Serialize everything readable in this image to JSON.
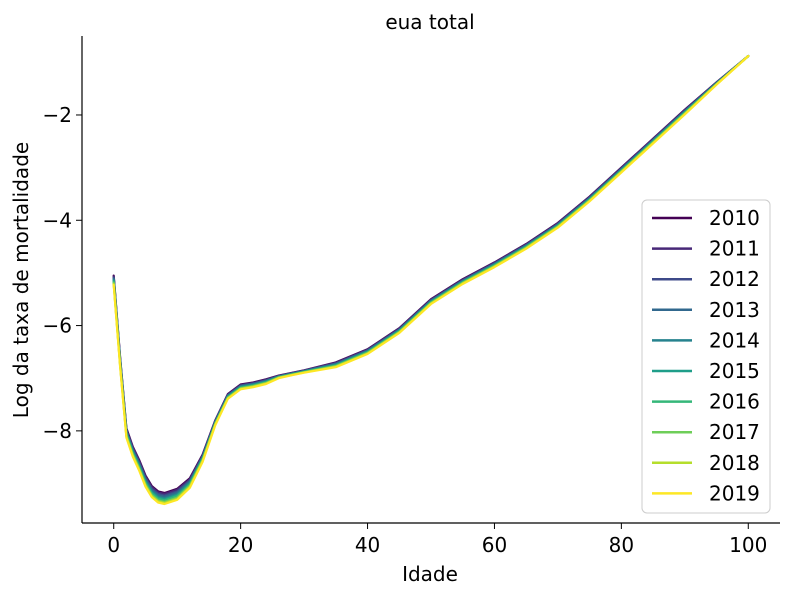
{
  "chart_data": {
    "type": "line",
    "title": "eua total",
    "xlabel": "Idade",
    "ylabel": "Log da taxa de mortalidade",
    "xlim": [
      -5,
      105
    ],
    "ylim": [
      -9.75,
      -0.5
    ],
    "xticks": [
      0,
      20,
      40,
      60,
      80,
      100
    ],
    "xtick_labels": [
      "0",
      "20",
      "40",
      "60",
      "80",
      "100"
    ],
    "yticks": [
      -8,
      -6,
      -4,
      -2
    ],
    "ytick_labels": [
      "−8",
      "−6",
      "−4",
      "−2"
    ],
    "grid": false,
    "legend_position": "lower-right",
    "x": [
      0,
      1,
      2,
      3,
      4,
      5,
      6,
      7,
      8,
      10,
      12,
      14,
      16,
      18,
      20,
      22,
      24,
      26,
      28,
      30,
      35,
      40,
      45,
      50,
      55,
      60,
      65,
      70,
      75,
      80,
      85,
      90,
      95,
      100
    ],
    "base_values": [
      -5.05,
      -6.6,
      -7.95,
      -8.3,
      -8.55,
      -8.85,
      -9.05,
      -9.15,
      -9.18,
      -9.1,
      -8.9,
      -8.45,
      -7.8,
      -7.3,
      -7.12,
      -7.08,
      -7.02,
      -6.95,
      -6.9,
      -6.85,
      -6.7,
      -6.45,
      -6.05,
      -5.5,
      -5.12,
      -4.8,
      -4.45,
      -4.05,
      -3.55,
      -3.0,
      -2.45,
      -1.9,
      -1.38,
      -0.88
    ],
    "series": [
      {
        "name": "2010",
        "color": "#440154",
        "offsets": [
          0.0,
          0.0,
          0.0,
          0.0,
          0.0,
          0.0,
          0.0,
          0.0,
          0.0,
          0.0,
          0.0,
          0.0,
          0.0,
          0.0,
          0.0,
          0.0,
          0.0,
          0.0,
          0.0,
          0.0,
          0.0,
          0.0,
          0.0,
          0.0,
          0.0,
          0.0,
          0.0,
          0.0,
          0.0,
          0.0,
          0.0,
          0.0,
          0.0,
          0.0
        ]
      },
      {
        "name": "2011",
        "color": "#482878",
        "offsets": [
          -0.02,
          -0.02,
          -0.02,
          -0.02,
          -0.02,
          -0.02,
          -0.02,
          -0.02,
          -0.02,
          -0.02,
          -0.02,
          -0.02,
          -0.01,
          -0.01,
          -0.01,
          -0.01,
          -0.01,
          -0.01,
          -0.005,
          -0.005,
          -0.01,
          -0.01,
          -0.01,
          -0.01,
          -0.01,
          -0.01,
          -0.01,
          -0.01,
          -0.01,
          -0.01,
          -0.01,
          -0.01,
          -0.005,
          0.0
        ]
      },
      {
        "name": "2012",
        "color": "#3e4a89",
        "offsets": [
          -0.04,
          -0.04,
          -0.04,
          -0.04,
          -0.05,
          -0.05,
          -0.05,
          -0.05,
          -0.05,
          -0.05,
          -0.04,
          -0.03,
          -0.02,
          -0.02,
          -0.02,
          -0.02,
          -0.02,
          -0.01,
          -0.01,
          -0.01,
          -0.02,
          -0.02,
          -0.02,
          -0.02,
          -0.02,
          -0.02,
          -0.02,
          -0.02,
          -0.02,
          -0.02,
          -0.02,
          -0.02,
          -0.01,
          0.0
        ]
      },
      {
        "name": "2013",
        "color": "#31688e",
        "offsets": [
          -0.06,
          -0.06,
          -0.06,
          -0.07,
          -0.07,
          -0.07,
          -0.07,
          -0.07,
          -0.07,
          -0.07,
          -0.06,
          -0.05,
          -0.03,
          -0.03,
          -0.03,
          -0.03,
          -0.03,
          -0.02,
          -0.015,
          -0.015,
          -0.03,
          -0.03,
          -0.03,
          -0.03,
          -0.03,
          -0.03,
          -0.03,
          -0.03,
          -0.03,
          -0.03,
          -0.03,
          -0.03,
          -0.015,
          0.0
        ]
      },
      {
        "name": "2014",
        "color": "#26828e",
        "offsets": [
          -0.08,
          -0.08,
          -0.08,
          -0.09,
          -0.09,
          -0.1,
          -0.1,
          -0.1,
          -0.1,
          -0.1,
          -0.08,
          -0.06,
          -0.04,
          -0.04,
          -0.04,
          -0.04,
          -0.04,
          -0.02,
          -0.02,
          -0.02,
          -0.04,
          -0.04,
          -0.04,
          -0.04,
          -0.04,
          -0.04,
          -0.04,
          -0.04,
          -0.04,
          -0.04,
          -0.04,
          -0.04,
          -0.02,
          0.0
        ]
      },
      {
        "name": "2015",
        "color": "#1f9e89",
        "offsets": [
          -0.1,
          -0.1,
          -0.1,
          -0.11,
          -0.12,
          -0.12,
          -0.12,
          -0.12,
          -0.12,
          -0.12,
          -0.1,
          -0.08,
          -0.05,
          -0.05,
          -0.05,
          -0.05,
          -0.05,
          -0.03,
          -0.025,
          -0.025,
          -0.05,
          -0.05,
          -0.05,
          -0.05,
          -0.05,
          -0.05,
          -0.05,
          -0.05,
          -0.05,
          -0.05,
          -0.05,
          -0.05,
          -0.025,
          0.0
        ]
      },
      {
        "name": "2016",
        "color": "#35b779",
        "offsets": [
          -0.12,
          -0.12,
          -0.12,
          -0.13,
          -0.14,
          -0.14,
          -0.14,
          -0.14,
          -0.14,
          -0.14,
          -0.12,
          -0.09,
          -0.06,
          -0.06,
          -0.06,
          -0.06,
          -0.06,
          -0.03,
          -0.03,
          -0.03,
          -0.06,
          -0.06,
          -0.06,
          -0.06,
          -0.06,
          -0.06,
          -0.06,
          -0.06,
          -0.06,
          -0.06,
          -0.06,
          -0.06,
          -0.03,
          0.0
        ]
      },
      {
        "name": "2017",
        "color": "#6ece58",
        "offsets": [
          -0.14,
          -0.14,
          -0.14,
          -0.15,
          -0.16,
          -0.17,
          -0.17,
          -0.17,
          -0.17,
          -0.17,
          -0.14,
          -0.11,
          -0.07,
          -0.07,
          -0.07,
          -0.07,
          -0.07,
          -0.04,
          -0.035,
          -0.035,
          -0.07,
          -0.07,
          -0.07,
          -0.07,
          -0.07,
          -0.07,
          -0.07,
          -0.07,
          -0.07,
          -0.07,
          -0.07,
          -0.07,
          -0.035,
          0.0
        ]
      },
      {
        "name": "2018",
        "color": "#b5de2b",
        "offsets": [
          -0.16,
          -0.16,
          -0.16,
          -0.17,
          -0.18,
          -0.19,
          -0.19,
          -0.19,
          -0.19,
          -0.19,
          -0.16,
          -0.12,
          -0.08,
          -0.08,
          -0.08,
          -0.08,
          -0.08,
          -0.04,
          -0.04,
          -0.04,
          -0.08,
          -0.08,
          -0.08,
          -0.08,
          -0.08,
          -0.08,
          -0.08,
          -0.08,
          -0.08,
          -0.08,
          -0.08,
          -0.08,
          -0.04,
          0.0
        ]
      },
      {
        "name": "2019",
        "color": "#fde725",
        "offsets": [
          -0.18,
          -0.18,
          -0.18,
          -0.19,
          -0.2,
          -0.21,
          -0.21,
          -0.21,
          -0.21,
          -0.21,
          -0.18,
          -0.14,
          -0.09,
          -0.09,
          -0.09,
          -0.09,
          -0.09,
          -0.05,
          -0.045,
          -0.045,
          -0.09,
          -0.09,
          -0.09,
          -0.09,
          -0.09,
          -0.09,
          -0.09,
          -0.09,
          -0.09,
          -0.09,
          -0.09,
          -0.09,
          -0.045,
          0.0
        ]
      }
    ]
  }
}
